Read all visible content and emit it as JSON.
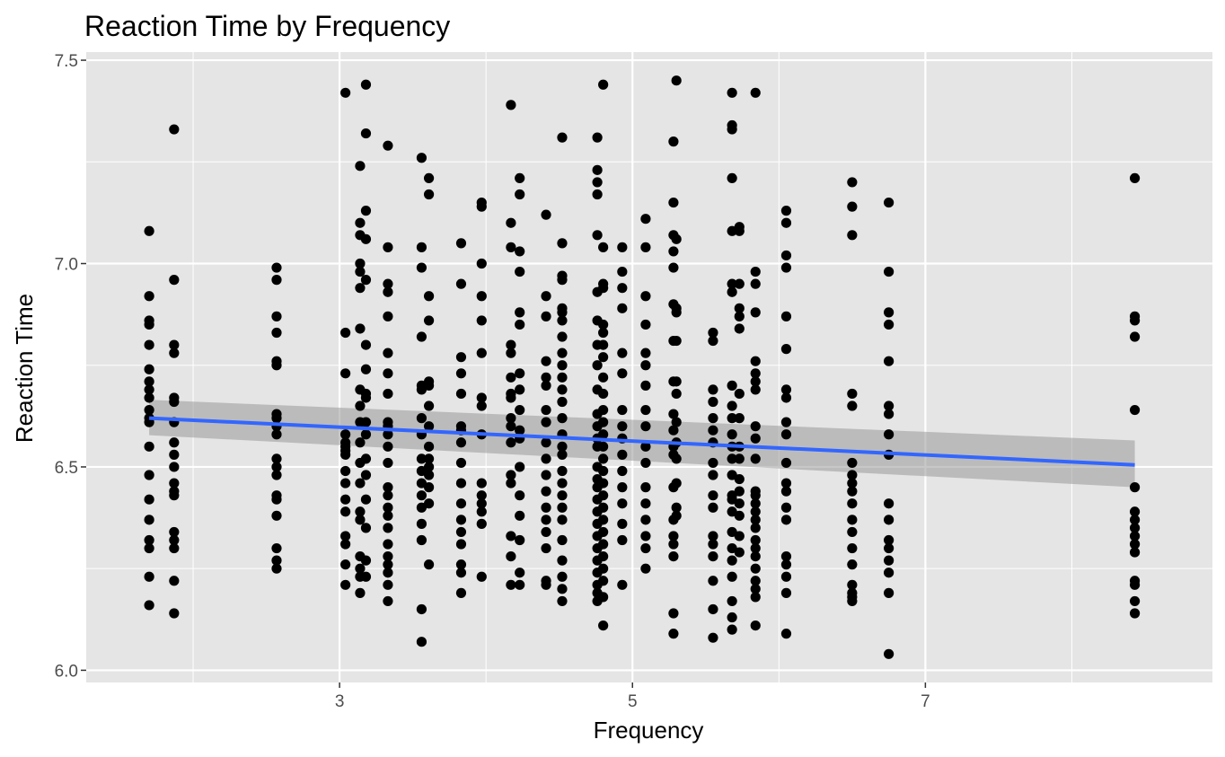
{
  "chart_data": {
    "type": "scatter",
    "title": "Reaction Time by Frequency",
    "xlabel": "Frequency",
    "ylabel": "Reaction Time",
    "xlim": [
      1.27,
      8.96
    ],
    "ylim": [
      5.97,
      7.52
    ],
    "x_ticks": [
      3,
      5,
      7
    ],
    "y_ticks": [
      6.0,
      6.5,
      7.0,
      7.5
    ],
    "x_tick_labels": [
      "3",
      "5",
      "7"
    ],
    "y_tick_labels": [
      "6.0",
      "6.5",
      "7.0",
      "7.5"
    ],
    "grid": true,
    "panel_background": "#e5e5e5",
    "point_color": "#000000",
    "trend_line": {
      "method": "linear regression",
      "color": "#3366ff",
      "band_color": "#999999",
      "x": [
        1.7,
        8.43
      ],
      "y": [
        6.62,
        6.505
      ],
      "band_low": [
        6.578,
        6.45
      ],
      "band_high": [
        6.665,
        6.565
      ]
    },
    "series": [
      {
        "x": 1.7,
        "y": [
          7.08,
          6.92,
          6.86,
          6.85,
          6.8,
          6.74,
          6.71,
          6.69,
          6.67,
          6.64,
          6.62,
          6.61,
          6.55,
          6.48,
          6.42,
          6.37,
          6.32,
          6.3,
          6.23,
          6.16
        ]
      },
      {
        "x": 1.87,
        "y": [
          7.33,
          6.96,
          6.8,
          6.78,
          6.67,
          6.66,
          6.61,
          6.56,
          6.53,
          6.5,
          6.46,
          6.44,
          6.43,
          6.34,
          6.32,
          6.3,
          6.22,
          6.14
        ]
      },
      {
        "x": 2.57,
        "y": [
          6.99,
          6.96,
          6.87,
          6.83,
          6.76,
          6.75,
          6.63,
          6.62,
          6.6,
          6.58,
          6.52,
          6.5,
          6.48,
          6.43,
          6.42,
          6.38,
          6.3,
          6.27,
          6.25
        ]
      },
      {
        "x": 3.04,
        "y": [
          7.42,
          6.83,
          6.73,
          6.58,
          6.56,
          6.55,
          6.54,
          6.53,
          6.49,
          6.46,
          6.42,
          6.39,
          6.33,
          6.31,
          6.26,
          6.21
        ]
      },
      {
        "x": 3.14,
        "y": [
          7.24,
          7.1,
          7.07,
          7.0,
          6.98,
          6.94,
          6.84,
          6.69,
          6.65,
          6.61,
          6.56,
          6.51,
          6.46,
          6.39,
          6.37,
          6.28,
          6.25,
          6.23,
          6.19
        ]
      },
      {
        "x": 3.18,
        "y": [
          7.44,
          7.32,
          7.13,
          7.06,
          6.96,
          6.8,
          6.74,
          6.68,
          6.67,
          6.61,
          6.58,
          6.52,
          6.48,
          6.42,
          6.35,
          6.27,
          6.23
        ]
      },
      {
        "x": 3.33,
        "y": [
          7.29,
          7.04,
          6.95,
          6.93,
          6.87,
          6.78,
          6.73,
          6.68,
          6.61,
          6.6,
          6.58,
          6.55,
          6.51,
          6.45,
          6.43,
          6.4,
          6.38,
          6.35,
          6.31,
          6.28,
          6.26,
          6.24,
          6.21,
          6.17
        ]
      },
      {
        "x": 3.56,
        "y": [
          7.26,
          7.04,
          6.99,
          6.82,
          6.7,
          6.69,
          6.62,
          6.58,
          6.52,
          6.49,
          6.46,
          6.43,
          6.4,
          6.36,
          6.32,
          6.15,
          6.07
        ]
      },
      {
        "x": 3.61,
        "y": [
          7.21,
          7.17,
          6.92,
          6.86,
          6.71,
          6.7,
          6.65,
          6.6,
          6.55,
          6.52,
          6.5,
          6.48,
          6.45,
          6.41,
          6.26
        ]
      },
      {
        "x": 3.83,
        "y": [
          7.05,
          6.95,
          6.77,
          6.73,
          6.68,
          6.6,
          6.59,
          6.56,
          6.51,
          6.46,
          6.41,
          6.37,
          6.34,
          6.31,
          6.26,
          6.24,
          6.19
        ]
      },
      {
        "x": 3.97,
        "y": [
          7.15,
          7.14,
          7.0,
          6.92,
          6.86,
          6.78,
          6.67,
          6.65,
          6.58,
          6.46,
          6.43,
          6.41,
          6.39,
          6.36,
          6.23
        ]
      },
      {
        "x": 4.17,
        "y": [
          7.39,
          7.1,
          7.04,
          6.8,
          6.78,
          6.72,
          6.68,
          6.67,
          6.62,
          6.6,
          6.56,
          6.48,
          6.46,
          6.33,
          6.28,
          6.21
        ]
      },
      {
        "x": 4.23,
        "y": [
          7.21,
          7.17,
          7.03,
          6.98,
          6.88,
          6.85,
          6.73,
          6.69,
          6.64,
          6.59,
          6.57,
          6.5,
          6.43,
          6.38,
          6.32,
          6.24,
          6.21
        ]
      },
      {
        "x": 4.41,
        "y": [
          7.12,
          6.92,
          6.87,
          6.76,
          6.72,
          6.7,
          6.64,
          6.61,
          6.56,
          6.52,
          6.48,
          6.44,
          6.4,
          6.37,
          6.34,
          6.3,
          6.22,
          6.21
        ]
      },
      {
        "x": 4.52,
        "y": [
          7.31,
          7.05,
          6.97,
          6.96,
          6.89,
          6.88,
          6.86,
          6.82,
          6.78,
          6.75,
          6.72,
          6.69,
          6.66,
          6.62,
          6.58,
          6.55,
          6.53,
          6.49,
          6.46,
          6.43,
          6.4,
          6.37,
          6.32,
          6.27,
          6.23,
          6.2,
          6.17
        ]
      },
      {
        "x": 4.76,
        "y": [
          7.31,
          7.23,
          7.2,
          7.17,
          7.07,
          6.93,
          6.86,
          6.8,
          6.75,
          6.69,
          6.63,
          6.6,
          6.57,
          6.55,
          6.5,
          6.47,
          6.45,
          6.42,
          6.39,
          6.36,
          6.33,
          6.3,
          6.27,
          6.24,
          6.21,
          6.19,
          6.17
        ]
      },
      {
        "x": 4.8,
        "y": [
          7.44,
          7.04,
          6.95,
          6.94,
          6.85,
          6.83,
          6.8,
          6.77,
          6.72,
          6.68,
          6.64,
          6.61,
          6.58,
          6.55,
          6.52,
          6.49,
          6.46,
          6.43,
          6.4,
          6.37,
          6.34,
          6.31,
          6.28,
          6.25,
          6.22,
          6.18,
          6.11
        ]
      },
      {
        "x": 4.93,
        "y": [
          7.04,
          6.98,
          6.94,
          6.89,
          6.78,
          6.73,
          6.64,
          6.6,
          6.57,
          6.53,
          6.49,
          6.45,
          6.41,
          6.36,
          6.32,
          6.21
        ]
      },
      {
        "x": 5.09,
        "y": [
          7.11,
          7.04,
          6.92,
          6.85,
          6.78,
          6.75,
          6.7,
          6.64,
          6.6,
          6.55,
          6.51,
          6.45,
          6.41,
          6.37,
          6.33,
          6.3,
          6.25
        ]
      },
      {
        "x": 5.28,
        "y": [
          7.3,
          7.15,
          7.07,
          7.03,
          6.99,
          6.9,
          6.81,
          6.71,
          6.63,
          6.59,
          6.55,
          6.53,
          6.45,
          6.37,
          6.33,
          6.31,
          6.28,
          6.14,
          6.09
        ]
      },
      {
        "x": 5.3,
        "y": [
          7.45,
          7.06,
          6.89,
          6.88,
          6.81,
          6.71,
          6.68,
          6.61,
          6.56,
          6.52,
          6.46,
          6.4,
          6.38
        ]
      },
      {
        "x": 5.55,
        "y": [
          6.83,
          6.81,
          6.69,
          6.66,
          6.62,
          6.59,
          6.56,
          6.51,
          6.48,
          6.43,
          6.4,
          6.33,
          6.31,
          6.28,
          6.22,
          6.15,
          6.08
        ]
      },
      {
        "x": 5.68,
        "y": [
          7.42,
          7.34,
          7.33,
          7.21,
          7.08,
          6.95,
          6.93,
          6.7,
          6.65,
          6.62,
          6.58,
          6.55,
          6.52,
          6.48,
          6.43,
          6.42,
          6.39,
          6.34,
          6.3,
          6.27,
          6.23,
          6.17,
          6.13,
          6.1
        ]
      },
      {
        "x": 5.73,
        "y": [
          7.09,
          7.08,
          6.95,
          6.89,
          6.87,
          6.84,
          6.68,
          6.62,
          6.55,
          6.52,
          6.47,
          6.44,
          6.41,
          6.38,
          6.33,
          6.29
        ]
      },
      {
        "x": 5.84,
        "y": [
          7.42,
          6.98,
          6.95,
          6.88,
          6.76,
          6.73,
          6.71,
          6.69,
          6.6,
          6.57,
          6.52,
          6.44,
          6.43,
          6.41,
          6.39,
          6.37,
          6.35,
          6.32,
          6.3,
          6.28,
          6.25,
          6.22,
          6.2,
          6.18,
          6.11
        ]
      },
      {
        "x": 6.05,
        "y": [
          7.13,
          7.1,
          7.02,
          6.99,
          6.87,
          6.79,
          6.69,
          6.67,
          6.61,
          6.58,
          6.51,
          6.46,
          6.44,
          6.4,
          6.37,
          6.28,
          6.26,
          6.23,
          6.19,
          6.09
        ]
      },
      {
        "x": 6.5,
        "y": [
          7.2,
          7.14,
          7.07,
          6.68,
          6.65,
          6.51,
          6.48,
          6.46,
          6.44,
          6.41,
          6.37,
          6.34,
          6.3,
          6.26,
          6.21,
          6.19,
          6.18,
          6.17
        ]
      },
      {
        "x": 6.75,
        "y": [
          7.15,
          6.98,
          6.88,
          6.85,
          6.76,
          6.65,
          6.63,
          6.58,
          6.53,
          6.41,
          6.37,
          6.32,
          6.3,
          6.27,
          6.24,
          6.19,
          6.04
        ]
      },
      {
        "x": 8.43,
        "y": [
          7.21,
          6.87,
          6.86,
          6.82,
          6.64,
          6.45,
          6.39,
          6.37,
          6.35,
          6.33,
          6.31,
          6.29,
          6.22,
          6.21,
          6.17,
          6.14
        ]
      }
    ]
  }
}
